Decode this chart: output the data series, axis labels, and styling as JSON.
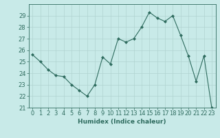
{
  "x": [
    0,
    1,
    2,
    3,
    4,
    5,
    6,
    7,
    8,
    9,
    10,
    11,
    12,
    13,
    14,
    15,
    16,
    17,
    18,
    19,
    20,
    21,
    22,
    23
  ],
  "y": [
    25.6,
    25.0,
    24.3,
    23.8,
    23.7,
    23.0,
    22.5,
    22.0,
    23.0,
    25.4,
    24.8,
    27.0,
    26.7,
    27.0,
    28.0,
    29.3,
    28.8,
    28.5,
    29.0,
    27.3,
    25.5,
    23.3,
    25.5,
    21.0
  ],
  "line_color": "#2e6b5e",
  "marker_color": "#2e6b5e",
  "bg_color": "#c8eae8",
  "grid_color": "#b0d4d0",
  "xlabel": "Humidex (Indice chaleur)",
  "ylim": [
    21,
    30
  ],
  "yticks": [
    21,
    22,
    23,
    24,
    25,
    26,
    27,
    28,
    29
  ],
  "xlim": [
    -0.5,
    23.5
  ],
  "label_fontsize": 6.5,
  "tick_fontsize": 6.0
}
